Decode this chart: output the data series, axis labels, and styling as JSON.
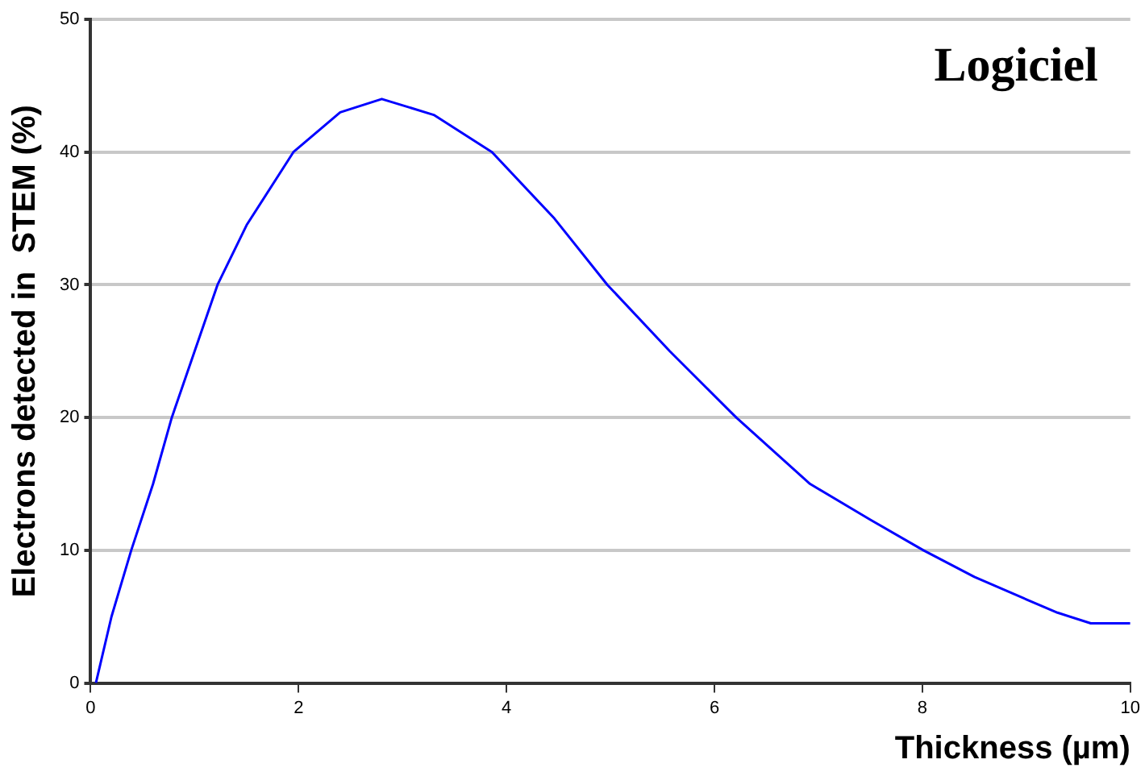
{
  "chart_data": {
    "type": "line",
    "xlabel": "Thickness (µm)",
    "ylabel": "Electrons detected in  STEM (%)",
    "annotations": [
      "Logiciel"
    ],
    "x": [
      0.05,
      0.2,
      0.39,
      0.6,
      0.78,
      1.0,
      1.22,
      1.5,
      1.95,
      2.4,
      2.8,
      3.3,
      3.86,
      4.46,
      4.97,
      5.57,
      6.21,
      6.92,
      7.5,
      8.01,
      8.5,
      9.0,
      9.3,
      9.62,
      10
    ],
    "series": [
      {
        "color": "#0000ff",
        "values": [
          0,
          5,
          10,
          15,
          20,
          25,
          30,
          34.5,
          40,
          43,
          44,
          42.8,
          40,
          35,
          30,
          25,
          20,
          15,
          12.3,
          10,
          8,
          6.3,
          5.3,
          4.5,
          4.5
        ]
      }
    ],
    "xlim": [
      0,
      10
    ],
    "ylim": [
      0,
      50
    ],
    "xticks": [
      0,
      2,
      4,
      6,
      8,
      10
    ],
    "yticks": [
      0,
      10,
      20,
      30,
      40,
      50
    ],
    "grid": "y",
    "marker": "none",
    "line_style": "solid",
    "legend": false
  }
}
